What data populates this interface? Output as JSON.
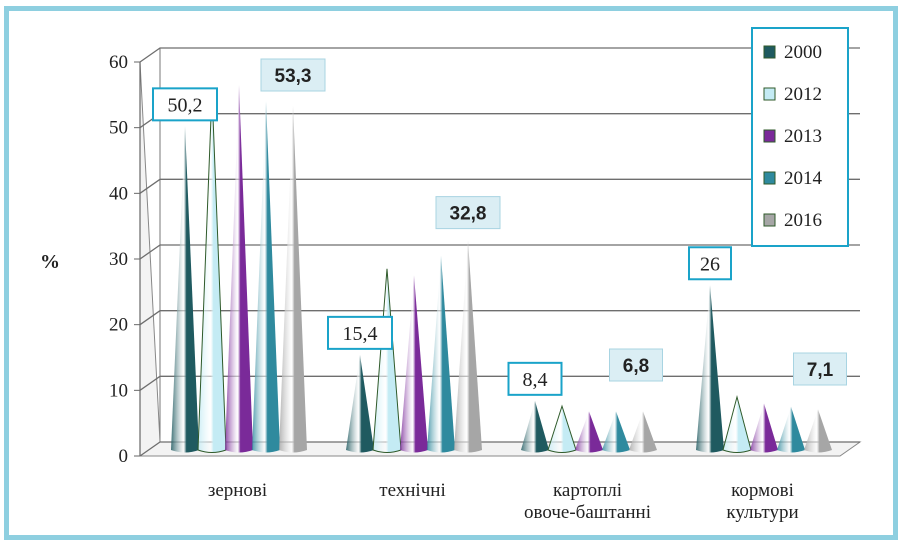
{
  "chart_data": {
    "type": "bar",
    "ylabel": "%",
    "ylim": [
      0,
      60
    ],
    "yticks": [
      "0",
      "10",
      "20",
      "30",
      "40",
      "50",
      "60"
    ],
    "categories": [
      "зернові",
      "технічні",
      "картоплі\nовоче-баштанні",
      "кормові\nкультури"
    ],
    "series": [
      {
        "name": "2000",
        "values": [
          50.2,
          15.4,
          8.4,
          26
        ],
        "color": "#1f5a60"
      },
      {
        "name": "2012",
        "values": [
          55.5,
          28.5,
          7.6,
          9.0
        ],
        "color": "#c4ebf4"
      },
      {
        "name": "2013",
        "values": [
          56.5,
          27.5,
          6.8,
          8.0
        ],
        "color": "#7a2a99"
      },
      {
        "name": "2014",
        "values": [
          54.0,
          30.5,
          6.8,
          7.5
        ],
        "color": "#2f8a9e"
      },
      {
        "name": "2016",
        "values": [
          53.3,
          32.8,
          6.8,
          7.1
        ],
        "color": "#a6a6a6"
      }
    ],
    "data_labels": [
      {
        "text": "50,2",
        "bold": false
      },
      {
        "text": "53,3",
        "bold": true
      },
      {
        "text": "15,4",
        "bold": false
      },
      {
        "text": "32,8",
        "bold": true
      },
      {
        "text": "8,4",
        "bold": false
      },
      {
        "text": "6,8",
        "bold": true
      },
      {
        "text": "26",
        "bold": false
      },
      {
        "text": "7,1",
        "bold": true
      }
    ],
    "legend_position": "top-right",
    "grid": true,
    "style": "3d-cone"
  }
}
